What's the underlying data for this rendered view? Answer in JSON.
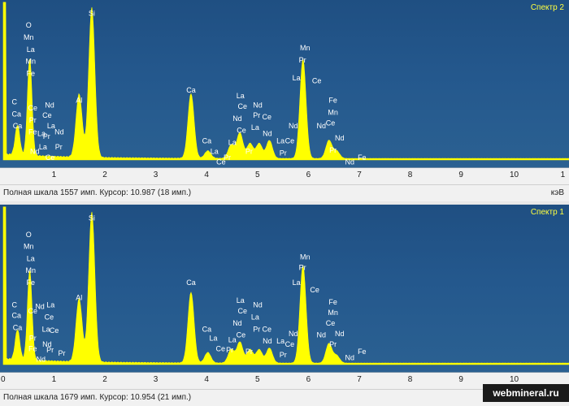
{
  "panels": [
    {
      "spectrum_title": "Спектр 2",
      "status": "Полная шкала 1557 имп. Курсор: 10.987  (18 имп.)",
      "unit": "кэВ",
      "x_ticks": [
        "1",
        "2",
        "3",
        "4",
        "5",
        "6",
        "7",
        "8",
        "9",
        "10",
        "1"
      ],
      "peaks": [
        {
          "energy": 0.28,
          "height": 0.2
        },
        {
          "energy": 0.52,
          "height": 0.65
        },
        {
          "energy": 1.49,
          "height": 0.42
        },
        {
          "energy": 1.74,
          "height": 1.0
        },
        {
          "energy": 3.69,
          "height": 0.43
        },
        {
          "energy": 4.02,
          "height": 0.05
        },
        {
          "energy": 4.48,
          "height": 0.09
        },
        {
          "energy": 4.65,
          "height": 0.17
        },
        {
          "energy": 4.85,
          "height": 0.1
        },
        {
          "energy": 5.03,
          "height": 0.1
        },
        {
          "energy": 5.23,
          "height": 0.12
        },
        {
          "energy": 5.89,
          "height": 0.66
        },
        {
          "energy": 6.4,
          "height": 0.12
        },
        {
          "energy": 6.55,
          "height": 0.05
        }
      ],
      "labels": [
        {
          "text": "C",
          "e": 0.22,
          "y": 0.63
        },
        {
          "text": "Ca",
          "e": 0.26,
          "y": 0.71
        },
        {
          "text": "Ca",
          "e": 0.28,
          "y": 0.79
        },
        {
          "text": "O",
          "e": 0.5,
          "y": 0.12
        },
        {
          "text": "Mn",
          "e": 0.5,
          "y": 0.2
        },
        {
          "text": "La",
          "e": 0.54,
          "y": 0.28
        },
        {
          "text": "Mn",
          "e": 0.54,
          "y": 0.36
        },
        {
          "text": "Fe",
          "e": 0.54,
          "y": 0.44
        },
        {
          "text": "Ce",
          "e": 0.58,
          "y": 0.67
        },
        {
          "text": "Pr",
          "e": 0.58,
          "y": 0.75
        },
        {
          "text": "Fe",
          "e": 0.58,
          "y": 0.83
        },
        {
          "text": "Nd",
          "e": 0.62,
          "y": 0.96
        },
        {
          "text": "Nd",
          "e": 0.91,
          "y": 0.65
        },
        {
          "text": "Ce",
          "e": 0.86,
          "y": 0.72
        },
        {
          "text": "La",
          "e": 0.94,
          "y": 0.79
        },
        {
          "text": "La",
          "e": 0.75,
          "y": 0.84
        },
        {
          "text": "Pr",
          "e": 0.85,
          "y": 0.86
        },
        {
          "text": "Nd",
          "e": 1.1,
          "y": 0.83
        },
        {
          "text": "La",
          "e": 0.78,
          "y": 0.93
        },
        {
          "text": "Pr",
          "e": 1.09,
          "y": 0.93
        },
        {
          "text": "Ce",
          "e": 0.92,
          "y": 1.0
        },
        {
          "text": "Si",
          "e": 1.74,
          "y": 0.04
        },
        {
          "text": "Al",
          "e": 1.49,
          "y": 0.62
        },
        {
          "text": "Ca",
          "e": 3.69,
          "y": 0.55
        },
        {
          "text": "Ca",
          "e": 4.0,
          "y": 0.89
        },
        {
          "text": "La",
          "e": 4.15,
          "y": 0.96
        },
        {
          "text": "Ce",
          "e": 4.28,
          "y": 1.03
        },
        {
          "text": "Pr",
          "e": 4.4,
          "y": 1.0
        },
        {
          "text": "La",
          "e": 4.66,
          "y": 0.59
        },
        {
          "text": "Ce",
          "e": 4.7,
          "y": 0.66
        },
        {
          "text": "Nd",
          "e": 4.6,
          "y": 0.74
        },
        {
          "text": "Ce",
          "e": 4.68,
          "y": 0.82
        },
        {
          "text": "Nd",
          "e": 5.0,
          "y": 0.65
        },
        {
          "text": "Pr",
          "e": 4.98,
          "y": 0.72
        },
        {
          "text": "La",
          "e": 4.95,
          "y": 0.8
        },
        {
          "text": "Ce",
          "e": 5.18,
          "y": 0.73
        },
        {
          "text": "Nd",
          "e": 5.19,
          "y": 0.84
        },
        {
          "text": "La",
          "e": 4.5,
          "y": 0.9
        },
        {
          "text": "Pr",
          "e": 4.83,
          "y": 0.96
        },
        {
          "text": "La",
          "e": 5.45,
          "y": 0.89
        },
        {
          "text": "Ce",
          "e": 5.63,
          "y": 0.89
        },
        {
          "text": "Pr",
          "e": 5.5,
          "y": 0.97
        },
        {
          "text": "Mn",
          "e": 5.93,
          "y": 0.27
        },
        {
          "text": "Pr",
          "e": 5.88,
          "y": 0.35
        },
        {
          "text": "La",
          "e": 5.76,
          "y": 0.47
        },
        {
          "text": "Ce",
          "e": 6.16,
          "y": 0.49
        },
        {
          "text": "Nd",
          "e": 5.7,
          "y": 0.79
        },
        {
          "text": "Nd",
          "e": 6.25,
          "y": 0.79
        },
        {
          "text": "Fe",
          "e": 6.48,
          "y": 0.62
        },
        {
          "text": "Mn",
          "e": 6.48,
          "y": 0.7
        },
        {
          "text": "Ce",
          "e": 6.43,
          "y": 0.77
        },
        {
          "text": "Nd",
          "e": 6.61,
          "y": 0.87
        },
        {
          "text": "Pr",
          "e": 6.48,
          "y": 0.95
        },
        {
          "text": "Nd",
          "e": 6.81,
          "y": 1.03
        },
        {
          "text": "Fe",
          "e": 7.05,
          "y": 1.0
        }
      ]
    },
    {
      "spectrum_title": "Спектр 1",
      "status": "Полная шкала 1679 имп. Курсор: 10.954  (21 имп.)",
      "unit": "",
      "x_ticks": [
        "0",
        "1",
        "2",
        "3",
        "4",
        "5",
        "6",
        "7",
        "8",
        "9",
        "10"
      ],
      "peaks": [
        {
          "energy": 0.28,
          "height": 0.2
        },
        {
          "energy": 0.52,
          "height": 0.6
        },
        {
          "energy": 1.49,
          "height": 0.42
        },
        {
          "energy": 1.74,
          "height": 1.0
        },
        {
          "energy": 3.69,
          "height": 0.47
        },
        {
          "energy": 4.02,
          "height": 0.07
        },
        {
          "energy": 4.48,
          "height": 0.09
        },
        {
          "energy": 4.65,
          "height": 0.14
        },
        {
          "energy": 4.85,
          "height": 0.09
        },
        {
          "energy": 5.03,
          "height": 0.09
        },
        {
          "energy": 5.23,
          "height": 0.1
        },
        {
          "energy": 5.89,
          "height": 0.65
        },
        {
          "energy": 6.4,
          "height": 0.13
        },
        {
          "energy": 6.55,
          "height": 0.05
        }
      ],
      "labels": [
        {
          "text": "C",
          "e": 0.22,
          "y": 0.62
        },
        {
          "text": "Ca",
          "e": 0.26,
          "y": 0.69
        },
        {
          "text": "Ca",
          "e": 0.28,
          "y": 0.77
        },
        {
          "text": "O",
          "e": 0.5,
          "y": 0.15
        },
        {
          "text": "Mn",
          "e": 0.5,
          "y": 0.23
        },
        {
          "text": "La",
          "e": 0.54,
          "y": 0.31
        },
        {
          "text": "Mn",
          "e": 0.54,
          "y": 0.39
        },
        {
          "text": "Fe",
          "e": 0.54,
          "y": 0.47
        },
        {
          "text": "Ce",
          "e": 0.58,
          "y": 0.66
        },
        {
          "text": "Pr",
          "e": 0.58,
          "y": 0.84
        },
        {
          "text": "Fe",
          "e": 0.58,
          "y": 0.91
        },
        {
          "text": "Nd",
          "e": 0.72,
          "y": 0.63
        },
        {
          "text": "La",
          "e": 0.93,
          "y": 0.62
        },
        {
          "text": "Ce",
          "e": 0.9,
          "y": 0.7
        },
        {
          "text": "La",
          "e": 0.84,
          "y": 0.78
        },
        {
          "text": "Ce",
          "e": 1.0,
          "y": 0.79
        },
        {
          "text": "Nd",
          "e": 0.86,
          "y": 0.88
        },
        {
          "text": "Pr",
          "e": 0.92,
          "y": 0.92
        },
        {
          "text": "Nd",
          "e": 0.74,
          "y": 0.98
        },
        {
          "text": "Pr",
          "e": 1.15,
          "y": 0.94
        },
        {
          "text": "Si",
          "e": 1.74,
          "y": 0.04
        },
        {
          "text": "Al",
          "e": 1.49,
          "y": 0.57
        },
        {
          "text": "Ca",
          "e": 3.69,
          "y": 0.47
        },
        {
          "text": "Ca",
          "e": 4.0,
          "y": 0.78
        },
        {
          "text": "La",
          "e": 4.13,
          "y": 0.84
        },
        {
          "text": "Ce",
          "e": 4.27,
          "y": 0.91
        },
        {
          "text": "La",
          "e": 4.5,
          "y": 0.85
        },
        {
          "text": "Pr",
          "e": 4.45,
          "y": 0.92
        },
        {
          "text": "La",
          "e": 4.66,
          "y": 0.59
        },
        {
          "text": "Ce",
          "e": 4.7,
          "y": 0.66
        },
        {
          "text": "Nd",
          "e": 4.6,
          "y": 0.74
        },
        {
          "text": "Ce",
          "e": 4.67,
          "y": 0.82
        },
        {
          "text": "Nd",
          "e": 5.0,
          "y": 0.62
        },
        {
          "text": "La",
          "e": 4.95,
          "y": 0.7
        },
        {
          "text": "Pr",
          "e": 4.98,
          "y": 0.78
        },
        {
          "text": "Ce",
          "e": 5.18,
          "y": 0.78
        },
        {
          "text": "Nd",
          "e": 5.19,
          "y": 0.86
        },
        {
          "text": "Pr",
          "e": 4.83,
          "y": 0.93
        },
        {
          "text": "La",
          "e": 5.45,
          "y": 0.86
        },
        {
          "text": "Ce",
          "e": 5.63,
          "y": 0.88
        },
        {
          "text": "Pr",
          "e": 5.5,
          "y": 0.95
        },
        {
          "text": "Mn",
          "e": 5.93,
          "y": 0.3
        },
        {
          "text": "Pr",
          "e": 5.88,
          "y": 0.37
        },
        {
          "text": "La",
          "e": 5.76,
          "y": 0.47
        },
        {
          "text": "Ce",
          "e": 6.12,
          "y": 0.52
        },
        {
          "text": "Nd",
          "e": 5.7,
          "y": 0.81
        },
        {
          "text": "Nd",
          "e": 6.25,
          "y": 0.82
        },
        {
          "text": "Fe",
          "e": 6.48,
          "y": 0.6
        },
        {
          "text": "Mn",
          "e": 6.48,
          "y": 0.67
        },
        {
          "text": "Ce",
          "e": 6.43,
          "y": 0.74
        },
        {
          "text": "Nd",
          "e": 6.61,
          "y": 0.81
        },
        {
          "text": "Pr",
          "e": 6.48,
          "y": 0.88
        },
        {
          "text": "Nd",
          "e": 6.81,
          "y": 0.97
        },
        {
          "text": "Fe",
          "e": 7.05,
          "y": 0.93
        }
      ]
    }
  ],
  "footer": {
    "site": "webmineral.ru"
  }
}
